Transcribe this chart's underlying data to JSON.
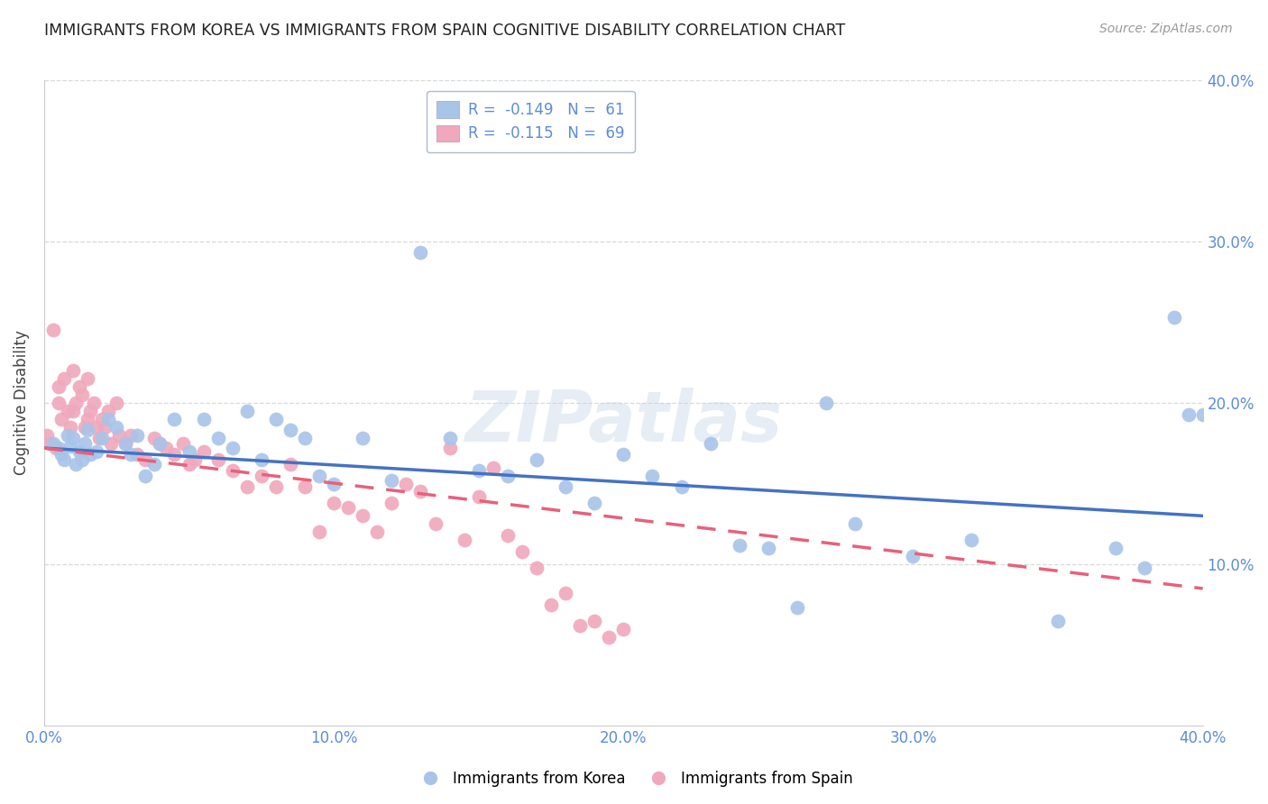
{
  "title": "IMMIGRANTS FROM KOREA VS IMMIGRANTS FROM SPAIN COGNITIVE DISABILITY CORRELATION CHART",
  "source": "Source: ZipAtlas.com",
  "ylabel": "Cognitive Disability",
  "xlim": [
    0.0,
    0.4
  ],
  "ylim": [
    0.0,
    0.4
  ],
  "xticks": [
    0.0,
    0.1,
    0.2,
    0.3,
    0.4
  ],
  "yticks": [
    0.1,
    0.2,
    0.3,
    0.4
  ],
  "xtick_labels": [
    "0.0%",
    "10.0%",
    "20.0%",
    "30.0%",
    "40.0%"
  ],
  "right_ytick_labels": [
    "10.0%",
    "20.0%",
    "30.0%",
    "40.0%"
  ],
  "korea_color": "#a8c4e8",
  "spain_color": "#f0a8bc",
  "korea_R": -0.149,
  "korea_N": 61,
  "spain_R": -0.115,
  "spain_N": 69,
  "korea_scatter_x": [
    0.003,
    0.005,
    0.006,
    0.007,
    0.008,
    0.009,
    0.01,
    0.011,
    0.012,
    0.013,
    0.014,
    0.015,
    0.016,
    0.018,
    0.02,
    0.022,
    0.025,
    0.028,
    0.03,
    0.032,
    0.035,
    0.038,
    0.04,
    0.045,
    0.05,
    0.055,
    0.06,
    0.065,
    0.07,
    0.075,
    0.08,
    0.085,
    0.09,
    0.095,
    0.1,
    0.11,
    0.12,
    0.13,
    0.14,
    0.15,
    0.16,
    0.17,
    0.18,
    0.19,
    0.2,
    0.21,
    0.22,
    0.23,
    0.24,
    0.25,
    0.26,
    0.27,
    0.28,
    0.3,
    0.32,
    0.35,
    0.37,
    0.38,
    0.39,
    0.395,
    0.4
  ],
  "korea_scatter_y": [
    0.175,
    0.172,
    0.168,
    0.165,
    0.18,
    0.173,
    0.178,
    0.162,
    0.17,
    0.165,
    0.175,
    0.183,
    0.168,
    0.17,
    0.178,
    0.19,
    0.185,
    0.175,
    0.168,
    0.18,
    0.155,
    0.162,
    0.175,
    0.19,
    0.17,
    0.19,
    0.178,
    0.172,
    0.195,
    0.165,
    0.19,
    0.183,
    0.178,
    0.155,
    0.15,
    0.178,
    0.152,
    0.293,
    0.178,
    0.158,
    0.155,
    0.165,
    0.148,
    0.138,
    0.168,
    0.155,
    0.148,
    0.175,
    0.112,
    0.11,
    0.073,
    0.2,
    0.125,
    0.105,
    0.115,
    0.065,
    0.11,
    0.098,
    0.253,
    0.193,
    0.193
  ],
  "spain_scatter_x": [
    0.001,
    0.002,
    0.003,
    0.004,
    0.005,
    0.005,
    0.006,
    0.007,
    0.008,
    0.009,
    0.01,
    0.01,
    0.011,
    0.012,
    0.013,
    0.014,
    0.015,
    0.015,
    0.016,
    0.017,
    0.018,
    0.019,
    0.02,
    0.021,
    0.022,
    0.023,
    0.025,
    0.026,
    0.028,
    0.03,
    0.032,
    0.035,
    0.038,
    0.04,
    0.042,
    0.045,
    0.048,
    0.05,
    0.052,
    0.055,
    0.06,
    0.065,
    0.07,
    0.075,
    0.08,
    0.085,
    0.09,
    0.095,
    0.1,
    0.105,
    0.11,
    0.115,
    0.12,
    0.125,
    0.13,
    0.135,
    0.14,
    0.145,
    0.15,
    0.155,
    0.16,
    0.165,
    0.17,
    0.175,
    0.18,
    0.185,
    0.19,
    0.195,
    0.2
  ],
  "spain_scatter_y": [
    0.18,
    0.175,
    0.245,
    0.172,
    0.21,
    0.2,
    0.19,
    0.215,
    0.195,
    0.185,
    0.22,
    0.195,
    0.2,
    0.21,
    0.205,
    0.185,
    0.215,
    0.19,
    0.195,
    0.2,
    0.185,
    0.178,
    0.19,
    0.185,
    0.195,
    0.175,
    0.2,
    0.18,
    0.175,
    0.18,
    0.168,
    0.165,
    0.178,
    0.175,
    0.172,
    0.168,
    0.175,
    0.162,
    0.165,
    0.17,
    0.165,
    0.158,
    0.148,
    0.155,
    0.148,
    0.162,
    0.148,
    0.12,
    0.138,
    0.135,
    0.13,
    0.12,
    0.138,
    0.15,
    0.145,
    0.125,
    0.172,
    0.115,
    0.142,
    0.16,
    0.118,
    0.108,
    0.098,
    0.075,
    0.082,
    0.062,
    0.065,
    0.055,
    0.06
  ],
  "watermark": "ZIPatlas",
  "grid_color": "#d8d8d8",
  "trendline_korea_color": "#4472c4",
  "trendline_spain_color": "#e8607a",
  "korea_trend_x0": 0.0,
  "korea_trend_y0": 0.172,
  "korea_trend_x1": 0.4,
  "korea_trend_y1": 0.13,
  "spain_trend_x0": 0.0,
  "spain_trend_y0": 0.172,
  "spain_trend_x1": 0.4,
  "spain_trend_y1": 0.085
}
